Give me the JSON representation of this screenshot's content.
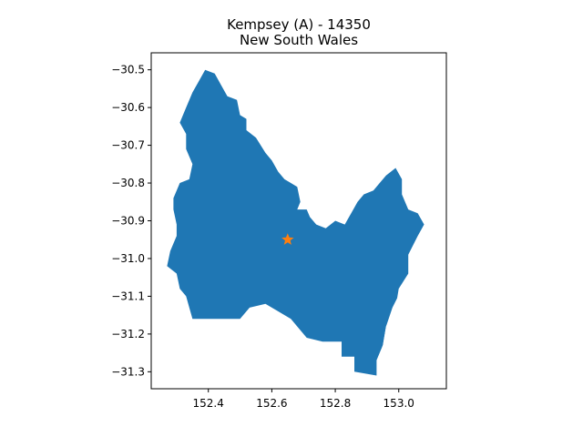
{
  "title": {
    "line1": "Kempsey (A) - 14350",
    "line2": "New South Wales"
  },
  "colors": {
    "region_fill": "#1f77b4",
    "marker": "#ff7f0e",
    "axes": "#000000",
    "background": "#ffffff"
  },
  "marker": {
    "symbol": "star-icon",
    "lon": 152.65,
    "lat": -30.95
  },
  "axes": {
    "xlim": [
      152.22,
      153.15
    ],
    "ylim": [
      -31.345,
      -30.455
    ],
    "xticks": [
      {
        "value": 152.4,
        "label": "152.4"
      },
      {
        "value": 152.6,
        "label": "152.6"
      },
      {
        "value": 152.8,
        "label": "152.8"
      },
      {
        "value": 153.0,
        "label": "153.0"
      }
    ],
    "yticks": [
      {
        "value": -30.5,
        "label": "−30.5"
      },
      {
        "value": -30.6,
        "label": "−30.6"
      },
      {
        "value": -30.7,
        "label": "−30.7"
      },
      {
        "value": -30.8,
        "label": "−30.8"
      },
      {
        "value": -30.9,
        "label": "−30.9"
      },
      {
        "value": -31.0,
        "label": "−31.0"
      },
      {
        "value": -31.1,
        "label": "−31.1"
      },
      {
        "value": -31.2,
        "label": "−31.2"
      },
      {
        "value": -31.3,
        "label": "−31.3"
      }
    ]
  },
  "region_outline": [
    [
      152.39,
      -30.5
    ],
    [
      152.42,
      -30.51
    ],
    [
      152.44,
      -30.54
    ],
    [
      152.46,
      -30.57
    ],
    [
      152.49,
      -30.58
    ],
    [
      152.5,
      -30.62
    ],
    [
      152.52,
      -30.63
    ],
    [
      152.52,
      -30.66
    ],
    [
      152.55,
      -30.68
    ],
    [
      152.58,
      -30.72
    ],
    [
      152.6,
      -30.74
    ],
    [
      152.62,
      -30.77
    ],
    [
      152.64,
      -30.79
    ],
    [
      152.66,
      -30.8
    ],
    [
      152.68,
      -30.81
    ],
    [
      152.69,
      -30.85
    ],
    [
      152.68,
      -30.87
    ],
    [
      152.71,
      -30.87
    ],
    [
      152.72,
      -30.89
    ],
    [
      152.74,
      -30.91
    ],
    [
      152.77,
      -30.92
    ],
    [
      152.8,
      -30.9
    ],
    [
      152.83,
      -30.91
    ],
    [
      152.85,
      -30.88
    ],
    [
      152.87,
      -30.85
    ],
    [
      152.89,
      -30.83
    ],
    [
      152.92,
      -30.82
    ],
    [
      152.94,
      -30.8
    ],
    [
      152.96,
      -30.78
    ],
    [
      152.99,
      -30.76
    ],
    [
      153.01,
      -30.79
    ],
    [
      153.01,
      -30.83
    ],
    [
      153.03,
      -30.87
    ],
    [
      153.06,
      -30.88
    ],
    [
      153.08,
      -30.91
    ],
    [
      153.06,
      -30.94
    ],
    [
      153.03,
      -30.99
    ],
    [
      153.03,
      -31.04
    ],
    [
      153.0,
      -31.08
    ],
    [
      152.99,
      -31.13
    ],
    [
      152.96,
      -31.18
    ],
    [
      152.95,
      -31.23
    ],
    [
      152.93,
      -31.27
    ],
    [
      152.93,
      -31.31
    ],
    [
      152.86,
      -31.3
    ],
    [
      152.86,
      -31.26
    ],
    [
      152.82,
      -31.26
    ],
    [
      152.82,
      -31.22
    ],
    [
      152.76,
      -31.22
    ],
    [
      152.71,
      -31.21
    ],
    [
      152.68,
      -31.18
    ],
    [
      152.66,
      -31.16
    ],
    [
      152.62,
      -31.14
    ],
    [
      152.58,
      -31.12
    ],
    [
      152.53,
      -31.13
    ],
    [
      152.5,
      -31.16
    ],
    [
      152.46,
      -31.16
    ],
    [
      152.42,
      -31.16
    ],
    [
      152.38,
      -31.16
    ],
    [
      152.35,
      -31.16
    ],
    [
      152.34,
      -31.13
    ],
    [
      152.33,
      -31.1
    ],
    [
      152.31,
      -31.08
    ],
    [
      152.3,
      -31.04
    ],
    [
      152.27,
      -31.02
    ],
    [
      152.28,
      -30.98
    ],
    [
      152.3,
      -30.94
    ],
    [
      152.3,
      -30.91
    ],
    [
      152.29,
      -30.87
    ],
    [
      152.29,
      -30.84
    ],
    [
      152.31,
      -30.8
    ],
    [
      152.34,
      -30.79
    ],
    [
      152.35,
      -30.75
    ],
    [
      152.33,
      -30.71
    ],
    [
      152.33,
      -30.67
    ],
    [
      152.31,
      -30.64
    ],
    [
      152.33,
      -30.6
    ],
    [
      152.35,
      -30.56
    ],
    [
      152.37,
      -30.53
    ],
    [
      152.39,
      -30.5
    ]
  ],
  "coastal_inlet": [
    [
      153.08,
      -30.91
    ],
    [
      153.05,
      -30.96
    ],
    [
      153.04,
      -31.01
    ],
    [
      153.04,
      -31.05
    ],
    [
      153.06,
      -31.04
    ],
    [
      153.09,
      -30.99
    ],
    [
      153.1,
      -30.94
    ]
  ],
  "southern_inlet": [
    [
      153.01,
      -31.08
    ],
    [
      152.98,
      -31.13
    ],
    [
      152.96,
      -31.18
    ],
    [
      152.95,
      -31.23
    ],
    [
      152.93,
      -31.27
    ],
    [
      152.96,
      -31.26
    ],
    [
      152.98,
      -31.21
    ],
    [
      153.0,
      -31.15
    ],
    [
      153.02,
      -31.1
    ]
  ]
}
